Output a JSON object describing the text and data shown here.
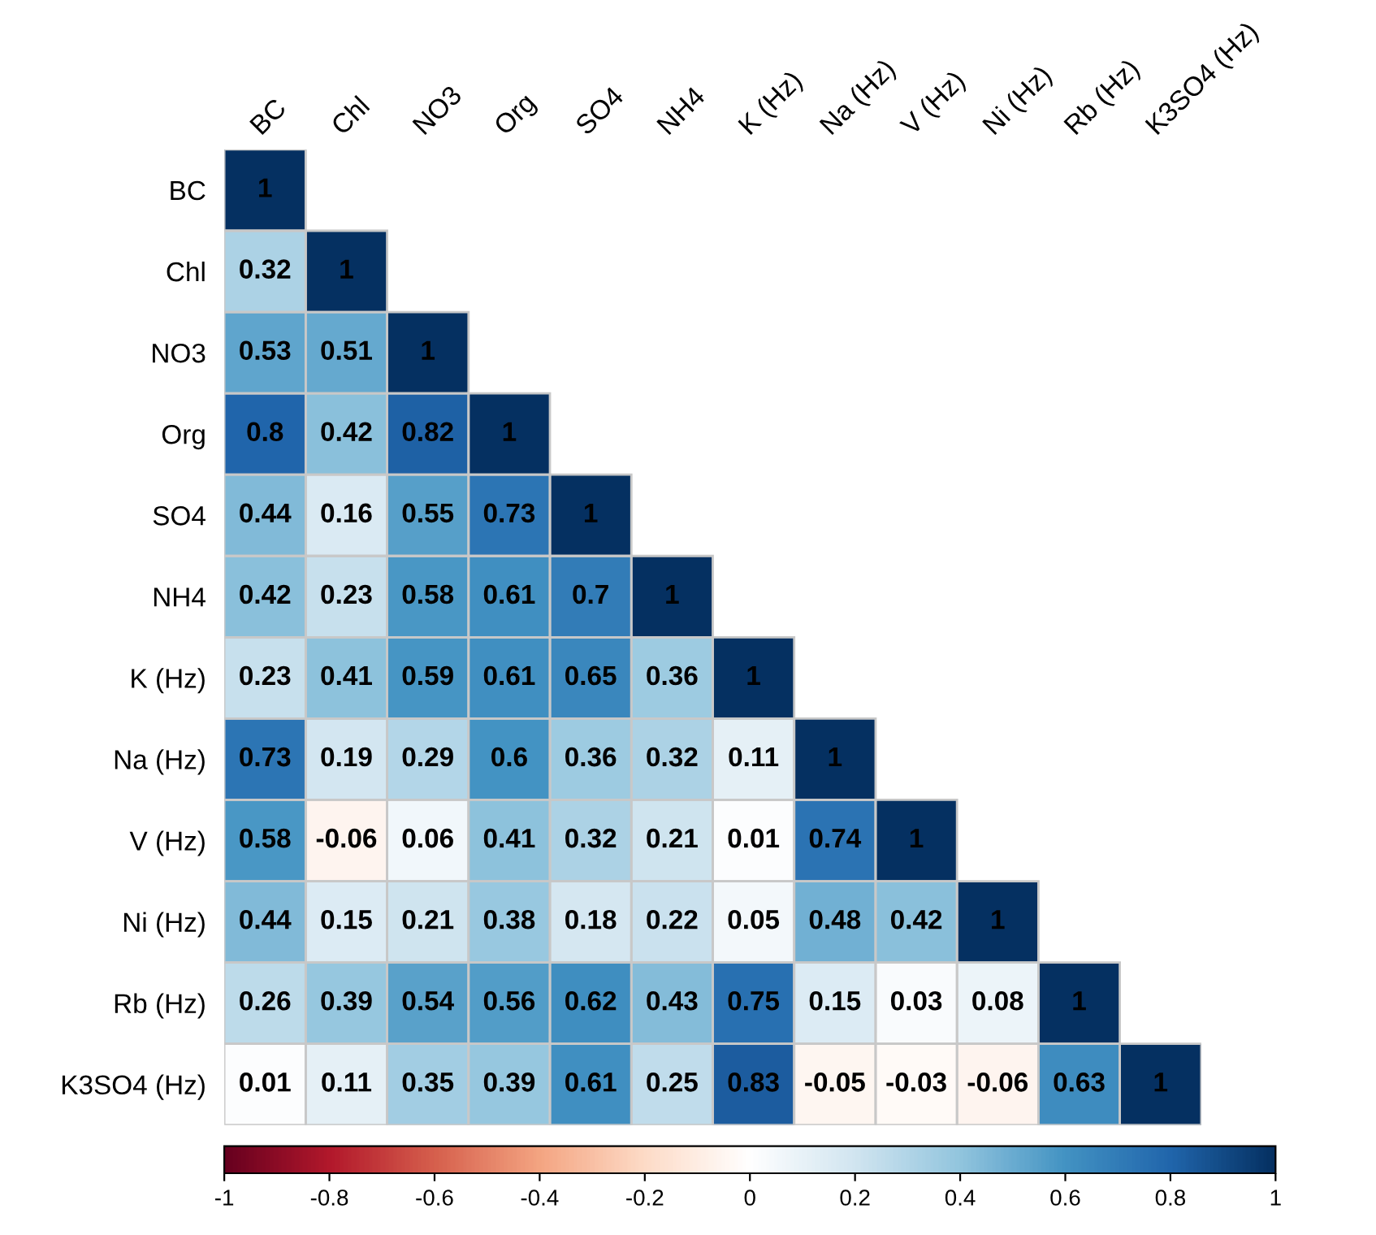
{
  "chart_data": {
    "type": "heatmap",
    "categories": [
      "BC",
      "Chl",
      "NO3",
      "Org",
      "SO4",
      "NH4",
      "K (Hz)",
      "Na (Hz)",
      "V (Hz)",
      "Ni (Hz)",
      "Rb (Hz)",
      "K3SO4 (Hz)"
    ],
    "y_categories": [
      "BC",
      "Chl",
      "NO3",
      "Org",
      "SO4",
      "NH4",
      "K (Hz)",
      "Na (Hz)",
      "V (Hz)",
      "Ni (Hz)",
      "Rb (Hz)",
      "K3SO4 (Hz)"
    ],
    "cells": [
      [
        1,
        null,
        null,
        null,
        null,
        null,
        null,
        null,
        null,
        null,
        null,
        null
      ],
      [
        0.32,
        1,
        null,
        null,
        null,
        null,
        null,
        null,
        null,
        null,
        null,
        null
      ],
      [
        0.53,
        0.51,
        1,
        null,
        null,
        null,
        null,
        null,
        null,
        null,
        null,
        null
      ],
      [
        0.8,
        0.42,
        0.82,
        1,
        null,
        null,
        null,
        null,
        null,
        null,
        null,
        null
      ],
      [
        0.44,
        0.16,
        0.55,
        0.73,
        1,
        null,
        null,
        null,
        null,
        null,
        null,
        null
      ],
      [
        0.42,
        0.23,
        0.58,
        0.61,
        0.7,
        1,
        null,
        null,
        null,
        null,
        null,
        null
      ],
      [
        0.23,
        0.41,
        0.59,
        0.61,
        0.65,
        0.36,
        1,
        null,
        null,
        null,
        null,
        null
      ],
      [
        0.73,
        0.19,
        0.29,
        0.6,
        0.36,
        0.32,
        0.11,
        1,
        null,
        null,
        null,
        null
      ],
      [
        0.58,
        -0.06,
        0.06,
        0.41,
        0.32,
        0.21,
        0.01,
        0.74,
        1,
        null,
        null,
        null
      ],
      [
        0.44,
        0.15,
        0.21,
        0.38,
        0.18,
        0.22,
        0.05,
        0.48,
        0.42,
        1,
        null,
        null
      ],
      [
        0.26,
        0.39,
        0.54,
        0.56,
        0.62,
        0.43,
        0.75,
        0.15,
        0.03,
        0.08,
        1,
        null
      ],
      [
        0.01,
        0.11,
        0.35,
        0.39,
        0.61,
        0.25,
        0.83,
        -0.05,
        -0.03,
        -0.06,
        0.63,
        1
      ]
    ],
    "clim": [
      -1,
      1
    ],
    "cticks": [
      -1,
      -0.8,
      -0.6,
      -0.4,
      -0.2,
      0,
      0.2,
      0.4,
      0.6,
      0.8,
      1
    ],
    "data_labels": true
  }
}
